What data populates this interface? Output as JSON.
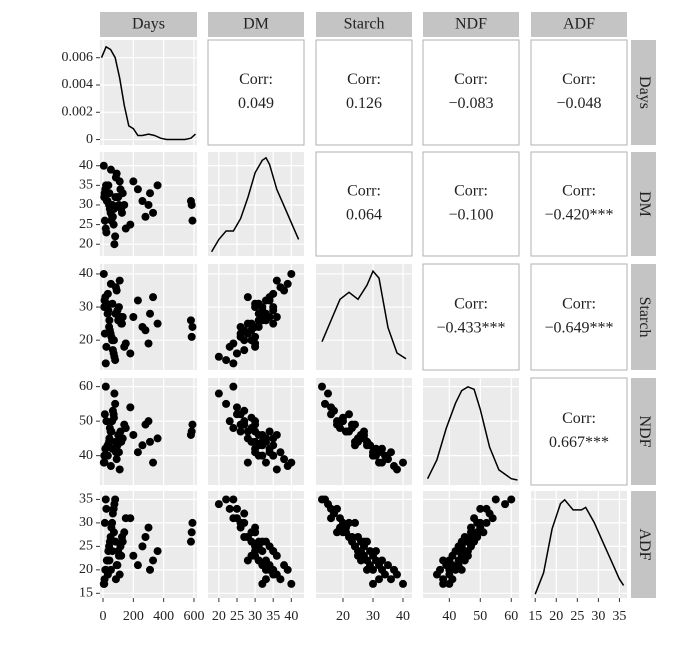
{
  "chart_data": {
    "type": "pairs",
    "variables": [
      "Days",
      "DM",
      "Starch",
      "NDF",
      "ADF"
    ],
    "color": "#000000",
    "grid": true,
    "scales": [
      {
        "lim": [
          -20,
          620
        ],
        "ticks": [
          0,
          200,
          400,
          600
        ]
      },
      {
        "lim": [
          17,
          43.5
        ],
        "ticks": [
          20,
          25,
          30,
          35,
          40
        ]
      },
      {
        "lim": [
          11,
          43
        ],
        "ticks": [
          20,
          30,
          40
        ]
      },
      {
        "lim": [
          31.5,
          62.5
        ],
        "ticks": [
          40,
          50,
          60
        ]
      },
      {
        "lim": [
          14,
          36.8
        ],
        "ticks": [
          15,
          20,
          25,
          30,
          35
        ]
      }
    ],
    "density": [
      {
        "x": [
          -10,
          20,
          50,
          80,
          110,
          140,
          170,
          200,
          230,
          260,
          300,
          340,
          380,
          420,
          460,
          500,
          540,
          580,
          610
        ],
        "y": [
          0.006,
          0.0068,
          0.0066,
          0.006,
          0.0045,
          0.0025,
          0.001,
          0.0008,
          0.0003,
          0.0003,
          0.0004,
          0.0003,
          0.0001,
          0,
          0,
          0,
          0,
          0.0001,
          0.0004
        ],
        "ylim": [
          -0.0004,
          0.0073
        ],
        "yticks": [
          0,
          0.002,
          0.004,
          0.006
        ]
      },
      {
        "x": [
          18,
          20,
          22,
          24,
          26,
          28,
          30,
          32,
          33,
          34,
          36,
          38,
          40,
          42
        ],
        "y": [
          0.005,
          0.02,
          0.03,
          0.03,
          0.045,
          0.07,
          0.1,
          0.115,
          0.118,
          0.11,
          0.08,
          0.06,
          0.04,
          0.02
        ],
        "ylim": [
          0,
          0.125
        ]
      },
      {
        "x": [
          13,
          16,
          19,
          22,
          25,
          28,
          30,
          32,
          35,
          38,
          41
        ],
        "y": [
          0.02,
          0.035,
          0.05,
          0.055,
          0.05,
          0.06,
          0.07,
          0.065,
          0.03,
          0.012,
          0.008
        ],
        "ylim": [
          0,
          0.075
        ]
      },
      {
        "x": [
          33,
          36,
          39,
          42,
          44,
          46,
          48,
          50,
          53,
          56,
          60,
          62
        ],
        "y": [
          0.005,
          0.02,
          0.045,
          0.065,
          0.075,
          0.078,
          0.076,
          0.06,
          0.03,
          0.012,
          0.005,
          0.004
        ],
        "ylim": [
          0,
          0.085
        ]
      },
      {
        "x": [
          15,
          17,
          19,
          21,
          22,
          24,
          26,
          27,
          29,
          31,
          33,
          35,
          36
        ],
        "y": [
          0.003,
          0.02,
          0.055,
          0.075,
          0.078,
          0.07,
          0.07,
          0.072,
          0.06,
          0.045,
          0.03,
          0.015,
          0.01
        ],
        "ylim": [
          0,
          0.085
        ]
      }
    ],
    "corr_title": "Corr:",
    "correlations": {
      "values": [
        0.049,
        0.126,
        -0.083,
        -0.048,
        0.064,
        -0.1,
        -0.42,
        -0.433,
        -0.649,
        0.667
      ],
      "value_labels": [
        "0.049",
        "0.126",
        "−0.083",
        "−0.048",
        "0.064",
        "−0.100",
        "−0.420***",
        "−0.433***",
        "−0.649***",
        "0.667***"
      ]
    },
    "observations": [
      [
        10,
        20,
        30,
        40,
        50,
        60,
        70,
        80,
        90,
        100,
        110,
        120,
        130,
        140,
        150,
        5,
        15,
        25,
        35,
        45,
        55,
        65,
        75,
        85,
        95,
        105,
        115,
        125,
        12,
        22,
        32,
        42,
        52,
        62,
        72,
        82,
        180,
        200,
        230,
        260,
        280,
        300,
        310,
        330,
        360,
        580,
        585,
        590,
        8,
        18
      ],
      [
        33,
        35,
        31,
        30,
        28,
        27,
        25,
        22,
        38,
        32,
        36,
        29,
        33,
        30,
        24,
        40,
        34,
        31,
        35,
        29,
        26,
        27,
        20,
        37,
        32,
        30,
        34,
        28,
        26,
        23,
        35,
        33,
        39,
        30,
        29,
        32,
        25,
        36,
        34,
        31,
        27,
        30,
        33,
        28,
        35,
        31,
        30,
        26,
        32,
        24
      ],
      [
        32,
        30,
        28,
        24,
        22,
        20,
        16,
        14,
        35,
        26,
        38,
        25,
        27,
        18,
        19,
        40,
        33,
        31,
        29,
        23,
        21,
        17,
        15,
        36,
        29,
        30,
        27,
        25,
        22,
        18,
        34,
        26,
        37,
        31,
        20,
        28,
        16,
        27,
        32,
        24,
        23,
        19,
        28,
        33,
        25,
        26,
        21,
        24,
        30,
        13
      ],
      [
        38,
        40,
        43,
        44,
        47,
        50,
        52,
        55,
        39,
        46,
        36,
        44,
        45,
        49,
        48,
        38,
        42,
        40,
        43,
        48,
        47,
        53,
        58,
        41,
        43,
        41,
        47,
        45,
        52,
        50,
        40,
        45,
        37,
        42,
        51,
        44,
        54,
        46,
        41,
        43,
        49,
        50,
        44,
        38,
        45,
        46,
        47,
        49,
        40,
        60
      ],
      [
        18,
        20,
        22,
        25,
        27,
        30,
        33,
        35,
        21,
        24,
        19,
        23,
        26,
        28,
        31,
        17,
        20,
        22,
        24,
        26,
        29,
        32,
        34,
        18,
        21,
        23,
        25,
        27,
        30,
        33,
        19,
        22,
        20,
        24,
        28,
        26,
        31,
        23,
        21,
        25,
        27,
        29,
        20,
        22,
        24,
        26,
        28,
        30,
        17,
        35
      ]
    ]
  }
}
